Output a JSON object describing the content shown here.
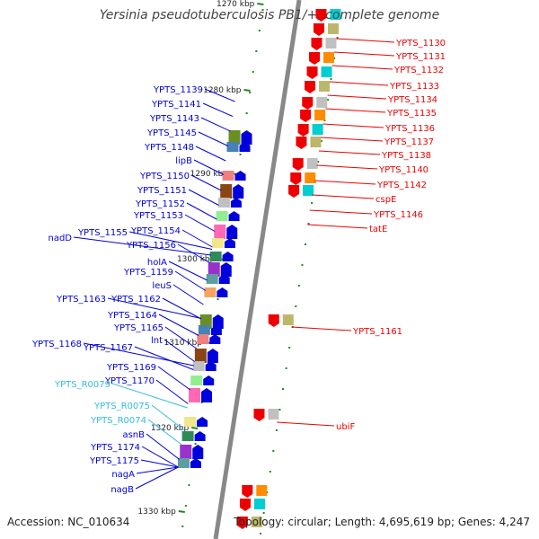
{
  "title": "Yersinia pseudotuberculosis PB1/+, complete genome",
  "footer": {
    "accession": "Accession: NC_010634",
    "info": "Topology: circular; Length: 4,695,619 bp; Genes: 4,247"
  },
  "colors": {
    "forward": "#0000dd",
    "reverse": "#ee0000",
    "rna": "#33bbdd",
    "axis": "#888888",
    "tick": "#228822"
  },
  "ticks": [
    "1270 kbp",
    "1280 kbp",
    "1290 kbp",
    "1300 kbp",
    "1310 kbp",
    "1320 kbp",
    "1330 kbp"
  ],
  "left_labels": [
    {
      "text": "YPTS_1139",
      "kind": "forward"
    },
    {
      "text": "YPTS_1141",
      "kind": "forward"
    },
    {
      "text": "YPTS_1143",
      "kind": "forward"
    },
    {
      "text": "YPTS_1145",
      "kind": "forward"
    },
    {
      "text": "YPTS_1148",
      "kind": "forward"
    },
    {
      "text": "lipB",
      "kind": "forward"
    },
    {
      "text": "YPTS_1150",
      "kind": "forward"
    },
    {
      "text": "YPTS_1151",
      "kind": "forward"
    },
    {
      "text": "YPTS_1152",
      "kind": "forward"
    },
    {
      "text": "YPTS_1153",
      "kind": "forward"
    },
    {
      "text": "YPTS_1154",
      "kind": "forward"
    },
    {
      "text": "YPTS_1155",
      "kind": "forward"
    },
    {
      "text": "nadD",
      "kind": "forward"
    },
    {
      "text": "YPTS_1156",
      "kind": "forward"
    },
    {
      "text": "holA",
      "kind": "forward"
    },
    {
      "text": "YPTS_1159",
      "kind": "forward"
    },
    {
      "text": "leuS",
      "kind": "forward"
    },
    {
      "text": "YPTS_1163",
      "kind": "forward"
    },
    {
      "text": "YPTS_1162",
      "kind": "forward"
    },
    {
      "text": "YPTS_1164",
      "kind": "forward"
    },
    {
      "text": "YPTS_1165",
      "kind": "forward"
    },
    {
      "text": "lnt",
      "kind": "forward"
    },
    {
      "text": "YPTS_1168",
      "kind": "forward"
    },
    {
      "text": "YPTS_1167",
      "kind": "forward"
    },
    {
      "text": "YPTS_1169",
      "kind": "forward"
    },
    {
      "text": "YPTS_1170",
      "kind": "forward"
    },
    {
      "text": "YPTS_R0079",
      "kind": "rna"
    },
    {
      "text": "YPTS_R0075",
      "kind": "rna"
    },
    {
      "text": "YPTS_R0074",
      "kind": "rna"
    },
    {
      "text": "asnB",
      "kind": "forward"
    },
    {
      "text": "YPTS_1174",
      "kind": "forward"
    },
    {
      "text": "YPTS_1175",
      "kind": "forward"
    },
    {
      "text": "nagA",
      "kind": "forward"
    },
    {
      "text": "nagB",
      "kind": "forward"
    }
  ],
  "right_labels": [
    {
      "text": "YPTS_1130"
    },
    {
      "text": "YPTS_1131"
    },
    {
      "text": "YPTS_1132"
    },
    {
      "text": "YPTS_1133"
    },
    {
      "text": "YPTS_1134"
    },
    {
      "text": "YPTS_1135"
    },
    {
      "text": "YPTS_1136"
    },
    {
      "text": "YPTS_1137"
    },
    {
      "text": "YPTS_1138"
    },
    {
      "text": "YPTS_1140"
    },
    {
      "text": "YPTS_1142"
    },
    {
      "text": "cspE"
    },
    {
      "text": "YPTS_1146"
    },
    {
      "text": "tatE"
    },
    {
      "text": "YPTS_1161"
    },
    {
      "text": "ubiF"
    }
  ]
}
